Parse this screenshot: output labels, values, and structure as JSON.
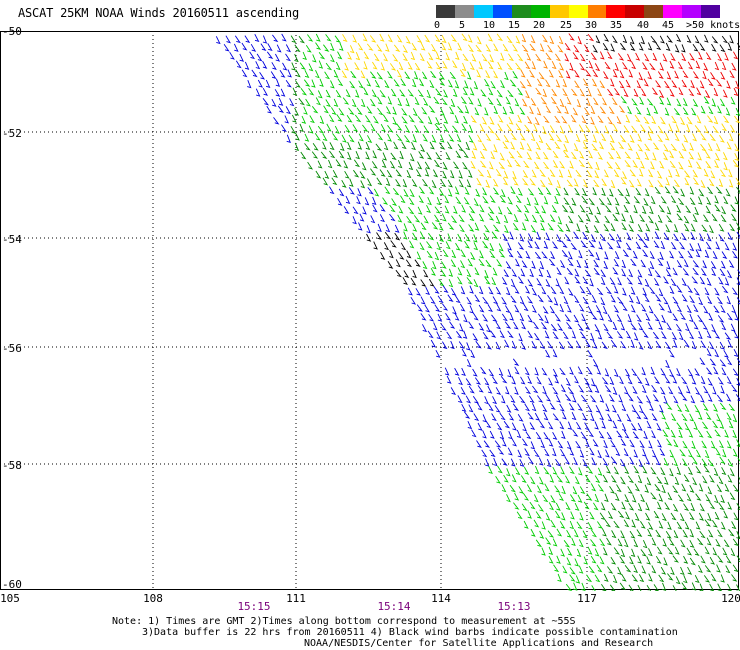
{
  "title": "ASCAT 25KM NOAA Winds 20160511 ascending",
  "legend": {
    "colors": [
      "#3a3a3a",
      "#8c8c8c",
      "#00c8ff",
      "#0050ff",
      "#1e8c1e",
      "#00b400",
      "#ffc800",
      "#ffff00",
      "#ff7d00",
      "#ff0000",
      "#c80000",
      "#8c4614",
      "#ff00ff",
      "#b400ff",
      "#5000a0"
    ],
    "labels": [
      "0",
      "5",
      "10",
      "15",
      "20",
      "25",
      "30",
      "35",
      "40",
      "45",
      ">50 knots"
    ]
  },
  "map": {
    "lat_labels": [
      "-50",
      "-52",
      "-54",
      "-56",
      "-58",
      "-60"
    ],
    "lon_labels": [
      "105",
      "108",
      "111",
      "114",
      "117",
      "120"
    ],
    "time_labels": [
      "15:15",
      "15:14",
      "15:13"
    ],
    "barb_colors": {
      "blue": "#0000dd",
      "green_dark": "#008800",
      "green": "#00cc00",
      "yellow": "#ffd800",
      "orange": "#ff8800",
      "red": "#ee0000",
      "black": "#000000"
    }
  },
  "note": {
    "line1": "Note: 1) Times are GMT 2)Times along bottom correspond to measurement at ~55S",
    "line2": "3)Data buffer is 22 hrs from 20160511 4) Black wind barbs indicate possible contamination",
    "line3": "NOAA/NESDIS/Center for Satellite Applications and Research"
  }
}
